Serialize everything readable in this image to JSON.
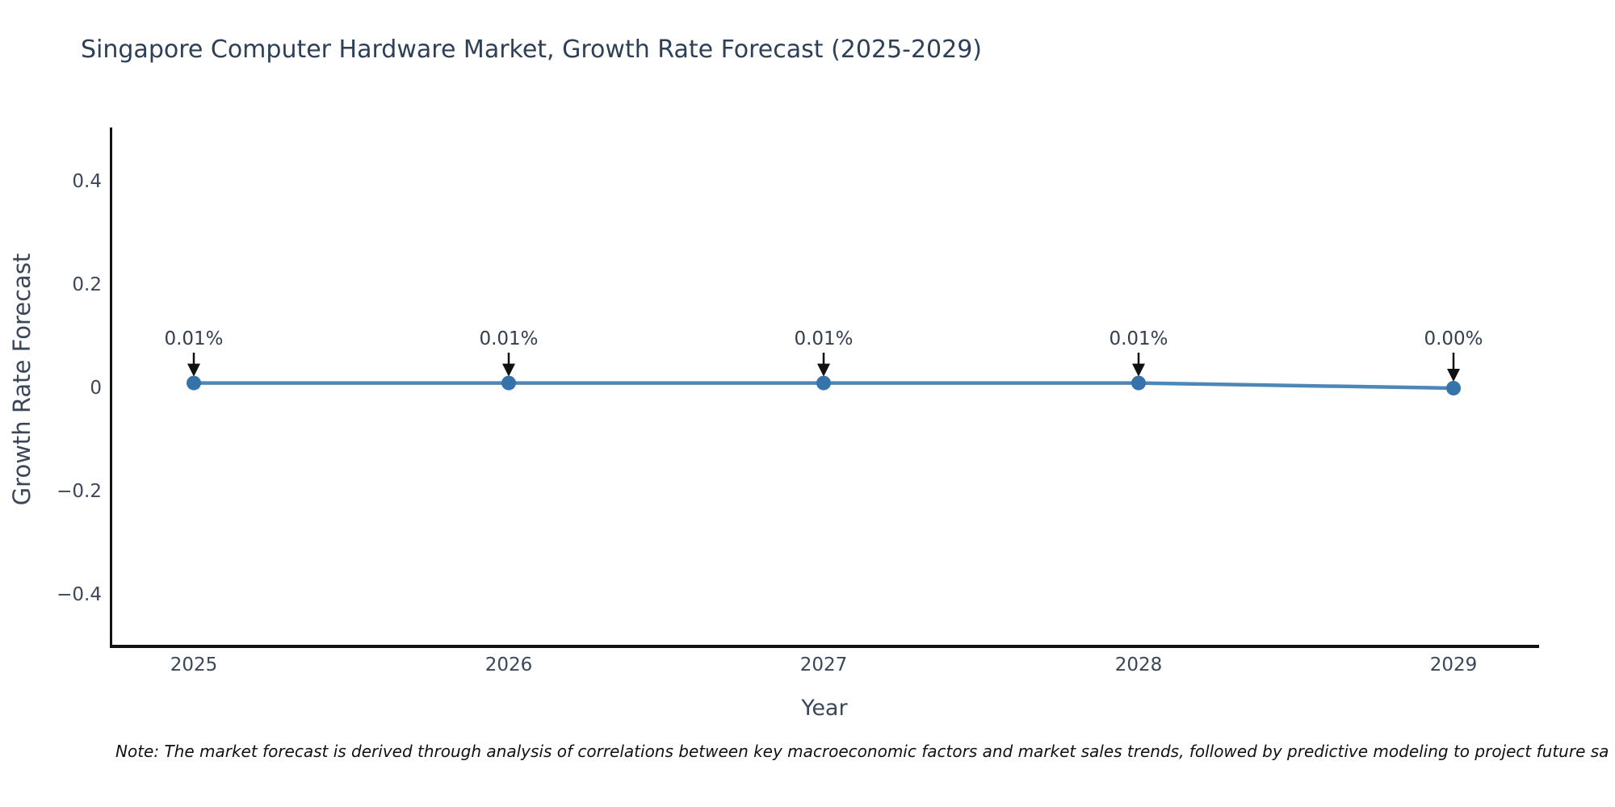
{
  "title": "Singapore Computer Hardware Market, Growth Rate Forecast (2025-2029)",
  "note": "Note: The market forecast is derived through analysis of correlations between key macroeconomic factors and market sales trends, followed by predictive modeling to project future sa",
  "chart_data": {
    "type": "line",
    "title": "Singapore Computer Hardware Market, Growth Rate Forecast (2025-2029)",
    "xlabel": "Year",
    "ylabel": "Growth Rate Forecast",
    "x": [
      2025,
      2026,
      2027,
      2028,
      2029
    ],
    "values": [
      0.01,
      0.01,
      0.01,
      0.01,
      0.0
    ],
    "unit": "%",
    "annotations": [
      "0.01%",
      "0.01%",
      "0.01%",
      "0.01%",
      "0.00%"
    ],
    "x_ticks": [
      "2025",
      "2026",
      "2027",
      "2028",
      "2029"
    ],
    "y_ticks": [
      "0.4",
      "0.2",
      "0",
      "−0.2",
      "−0.4"
    ],
    "y_tick_values": [
      0.4,
      0.2,
      0,
      -0.2,
      -0.4
    ],
    "ylim": [
      -0.5,
      0.51
    ],
    "grid": false,
    "legend_position": "none",
    "colors": {
      "line": "#4d87b7",
      "marker": "#3573ab",
      "axis": "#111111",
      "arrow": "#111111",
      "tick_text": "#3b4759",
      "title_text": "#2e4057",
      "annotation_text": "#333e4e",
      "note_text": "#111111"
    }
  }
}
